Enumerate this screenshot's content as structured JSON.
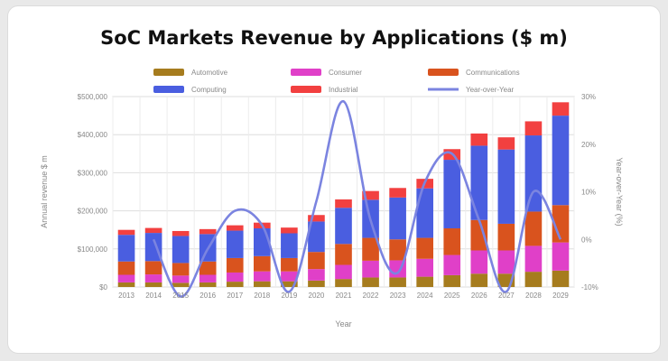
{
  "chart_data": {
    "type": "bar",
    "stacked": true,
    "title": "SoC Markets Revenue by Applications ($ m)",
    "xlabel": "Year",
    "ylabel": "Annual revenue $ m",
    "y2label": "Year-over-Year (%)",
    "ylim": [
      0,
      500000
    ],
    "y2lim": [
      -10,
      30
    ],
    "yticks": [
      "$0",
      "$100,000",
      "$200,000",
      "$300,000",
      "$400,000",
      "$500,000"
    ],
    "y2ticks": [
      "-10%",
      "0%",
      "10%",
      "20%",
      "30%"
    ],
    "grid": true,
    "legend_position": "top",
    "categories": [
      "2013",
      "2014",
      "2015",
      "2016",
      "2017",
      "2018",
      "2019",
      "2020",
      "2021",
      "2022",
      "2023",
      "2024",
      "2025",
      "2026",
      "2027",
      "2028",
      "2029"
    ],
    "series": [
      {
        "name": "Automotive",
        "color": "#a67c1e",
        "values": [
          12000,
          12000,
          11000,
          12000,
          14000,
          15000,
          15000,
          17000,
          21000,
          25000,
          25000,
          27000,
          31000,
          35000,
          35000,
          40000,
          43000
        ]
      },
      {
        "name": "Consumer",
        "color": "#e040c8",
        "values": [
          20000,
          21000,
          19000,
          20000,
          24000,
          26000,
          26000,
          30000,
          37000,
          44000,
          45000,
          47000,
          53000,
          61000,
          61000,
          68000,
          74000
        ]
      },
      {
        "name": "Communications",
        "color": "#d9531e",
        "values": [
          35000,
          35000,
          33000,
          35000,
          38000,
          40000,
          35000,
          45000,
          55000,
          60000,
          55000,
          55000,
          70000,
          80000,
          70000,
          90000,
          98000
        ]
      },
      {
        "name": "Computing",
        "color": "#4a5ee0",
        "values": [
          70000,
          74000,
          71000,
          72000,
          72000,
          73000,
          65000,
          80000,
          95000,
          100000,
          110000,
          130000,
          180000,
          195000,
          195000,
          200000,
          235000
        ]
      },
      {
        "name": "Industrial",
        "color": "#f24040",
        "values": [
          13000,
          13000,
          13000,
          13000,
          14000,
          15000,
          15000,
          17000,
          22000,
          23000,
          25000,
          25000,
          28000,
          32000,
          32000,
          37000,
          35000
        ]
      }
    ],
    "line": {
      "name": "Year-over-Year",
      "color": "#7b84e0",
      "values": [
        null,
        0,
        -12,
        -2,
        6,
        3,
        -11,
        8,
        29,
        4,
        -7,
        12,
        18,
        4,
        -11,
        10,
        0
      ]
    }
  }
}
